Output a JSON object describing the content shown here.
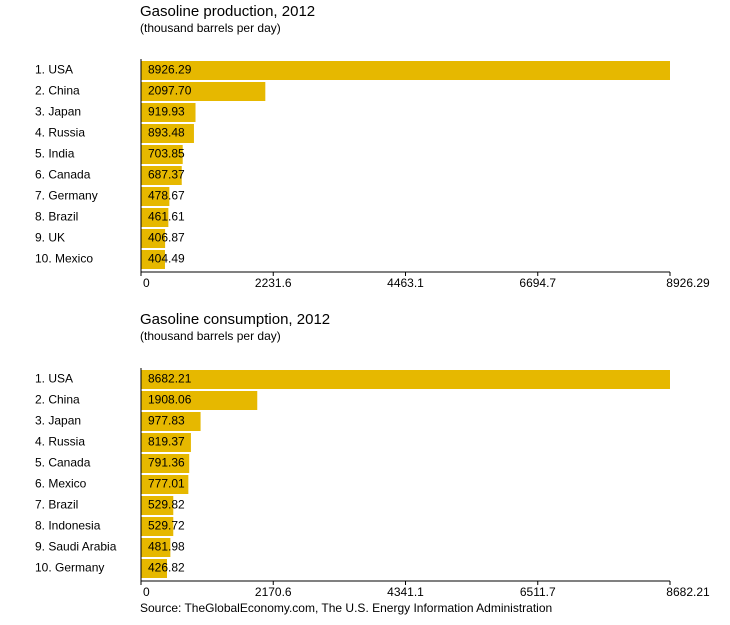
{
  "chart_data": [
    {
      "type": "bar",
      "orientation": "horizontal",
      "title": "Gasoline production, 2012",
      "subtitle": "(thousand barrels per day)",
      "categories": [
        "1. USA",
        "2. China",
        "3. Japan",
        "4. Russia",
        "5. India",
        "6. Canada",
        "7. Germany",
        "8. Brazil",
        "9. UK",
        "10. Mexico"
      ],
      "values": [
        8926.29,
        2097.7,
        919.93,
        893.48,
        703.85,
        687.37,
        478.67,
        461.61,
        406.87,
        404.49
      ],
      "value_labels": [
        "8926.29",
        "2097.70",
        "919.93",
        "893.48",
        "703.85",
        "687.37",
        "478.67",
        "461.61",
        "406.87",
        "404.49"
      ],
      "color": "#e6b800",
      "xlim": [
        0,
        8926.29
      ],
      "xticks": [
        0,
        2231.6,
        4463.1,
        6694.7,
        8926.29
      ]
    },
    {
      "type": "bar",
      "orientation": "horizontal",
      "title": "Gasoline consumption, 2012",
      "subtitle": "(thousand barrels per day)",
      "categories": [
        "1. USA",
        "2. China",
        "3. Japan",
        "4. Russia",
        "5. Canada",
        "6. Mexico",
        "7. Brazil",
        "8. Indonesia",
        "9. Saudi Arabia",
        "10. Germany"
      ],
      "values": [
        8682.21,
        1908.06,
        977.83,
        819.37,
        791.36,
        777.01,
        529.82,
        529.72,
        481.98,
        426.82
      ],
      "value_labels": [
        "8682.21",
        "1908.06",
        "977.83",
        "819.37",
        "791.36",
        "777.01",
        "529.82",
        "529.72",
        "481.98",
        "426.82"
      ],
      "color": "#e6b800",
      "xlim": [
        0,
        8682.21
      ],
      "xticks": [
        0,
        2170.6,
        4341.1,
        6511.7,
        8682.21
      ]
    }
  ],
  "source": "Source: TheGlobalEconomy.com, The U.S. Energy Information Administration"
}
